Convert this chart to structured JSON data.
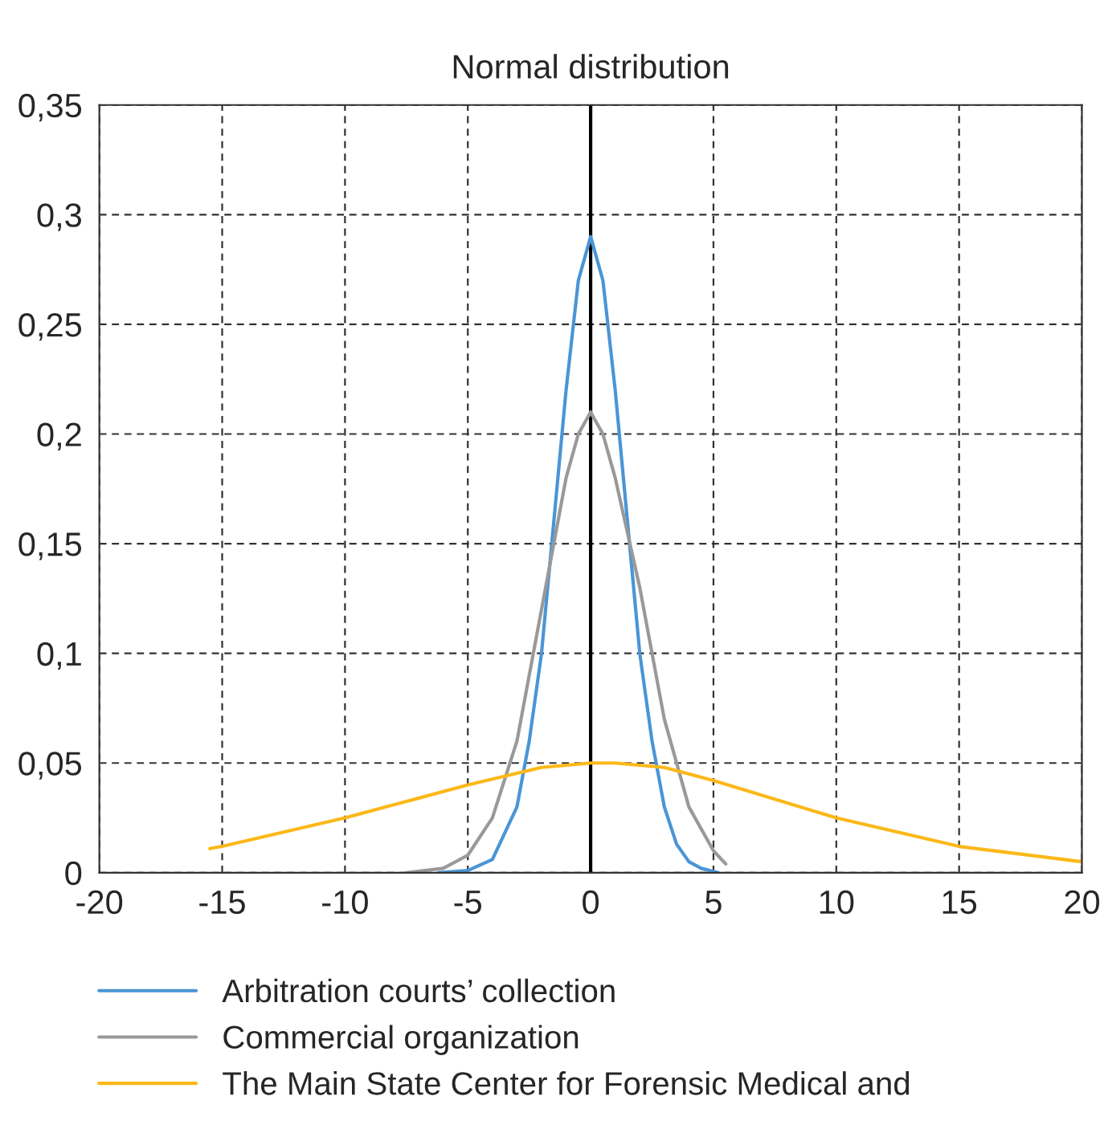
{
  "chart_data": {
    "type": "line",
    "title": "Normal distribution",
    "xlim": [
      -20,
      20
    ],
    "xticks": [
      -20,
      -15,
      -10,
      -5,
      0,
      5,
      10,
      15,
      20
    ],
    "ylim": [
      0,
      0.35
    ],
    "yticks": [
      0,
      {
        "value": 0.05,
        "label": "0,05"
      },
      {
        "value": 0.1,
        "label": "0,1"
      },
      {
        "value": 0.15,
        "label": "0,15"
      },
      {
        "value": 0.2,
        "label": "0,2"
      },
      {
        "value": 0.25,
        "label": "0,25"
      },
      {
        "value": 0.3,
        "label": "0,3"
      },
      {
        "value": 0.35,
        "label": "0,35"
      }
    ],
    "grid": true,
    "legend": "bottom",
    "ref_lines": [
      {
        "axis": "x",
        "value": 0,
        "color": "#000000",
        "line_style": "solid"
      }
    ],
    "marker": "none",
    "line_style": "solid",
    "series": [
      {
        "name": "Arbitration courts’ collection",
        "color": "#4a95d6",
        "x": [
          -6.2,
          -5,
          -4,
          -3,
          -2.5,
          -2,
          -1.5,
          -1,
          -0.5,
          0,
          0.5,
          1,
          1.5,
          2,
          2.5,
          3,
          3.5,
          4,
          4.5,
          5.2
        ],
        "values": [
          0,
          0.001,
          0.006,
          0.03,
          0.06,
          0.1,
          0.16,
          0.22,
          0.27,
          0.29,
          0.27,
          0.22,
          0.16,
          0.1,
          0.06,
          0.03,
          0.013,
          0.005,
          0.002,
          0
        ]
      },
      {
        "name": "Commercial organization",
        "color": "#999999",
        "x": [
          -7.5,
          -6,
          -5,
          -4,
          -3,
          -2,
          -1,
          -0.5,
          0,
          0.5,
          1,
          2,
          3,
          4,
          5,
          5.5
        ],
        "values": [
          0,
          0.002,
          0.008,
          0.025,
          0.06,
          0.12,
          0.18,
          0.2,
          0.21,
          0.2,
          0.18,
          0.13,
          0.07,
          0.03,
          0.01,
          0.004
        ]
      },
      {
        "name": "The Main State Center for Forensic Medical and",
        "color": "#fbb818",
        "x": [
          -15.5,
          -15,
          -10,
          -5,
          -2,
          0,
          1,
          3,
          5,
          10,
          15,
          20
        ],
        "values": [
          0.011,
          0.012,
          0.025,
          0.04,
          0.048,
          0.05,
          0.05,
          0.048,
          0.042,
          0.025,
          0.012,
          0.005
        ]
      }
    ]
  }
}
